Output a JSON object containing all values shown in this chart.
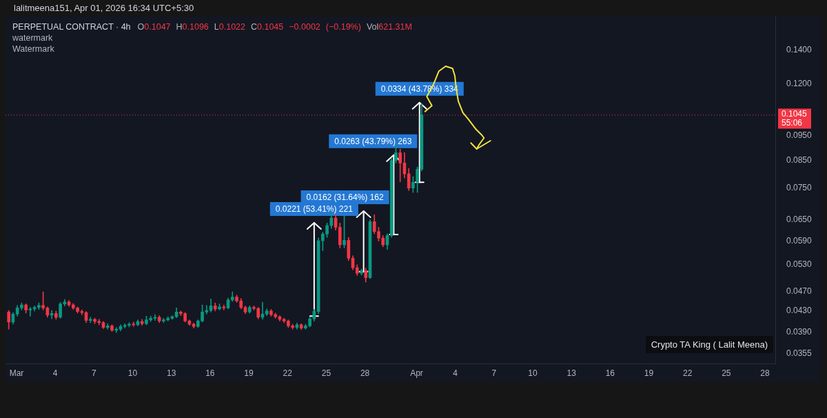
{
  "chart_data": {
    "type": "candlestick",
    "title": "PERPETUAL CONTRACT · 4h",
    "subtitle": "O0.1047 H0.1096 L0.1022 C0.1045 −0.0002 (−0.19%) Vol621.31M",
    "x": [
      "2026-02-28T09:30",
      "2026-02-28T17:30",
      "2026-03-01T01:30",
      "2026-03-01T09:30",
      "2026-03-01T17:30",
      "2026-03-02T01:30",
      "2026-03-02T09:30",
      "2026-03-02T17:30",
      "2026-03-03T01:30",
      "2026-03-03T09:30",
      "2026-03-03T17:30",
      "2026-03-04T01:30",
      "2026-03-04T09:30",
      "2026-03-04T17:30",
      "2026-03-05T01:30",
      "2026-03-05T09:30",
      "2026-03-05T17:30",
      "2026-03-06T01:30",
      "2026-03-06T09:30",
      "2026-03-06T17:30",
      "2026-03-07T01:30",
      "2026-03-07T09:30",
      "2026-03-07T17:30",
      "2026-03-08T01:30",
      "2026-03-08T09:30",
      "2026-03-08T17:30",
      "2026-03-09T01:30",
      "2026-03-09T09:30",
      "2026-03-09T17:30",
      "2026-03-10T01:30",
      "2026-03-10T09:30",
      "2026-03-10T17:30",
      "2026-03-11T01:30",
      "2026-03-11T09:30",
      "2026-03-11T17:30",
      "2026-03-12T01:30",
      "2026-03-12T09:30",
      "2026-03-12T17:30",
      "2026-03-13T01:30",
      "2026-03-13T09:30",
      "2026-03-13T17:30",
      "2026-03-14T01:30",
      "2026-03-14T09:30",
      "2026-03-14T17:30",
      "2026-03-15T01:30",
      "2026-03-15T09:30",
      "2026-03-15T17:30",
      "2026-03-16T01:30",
      "2026-03-16T09:30",
      "2026-03-16T17:30",
      "2026-03-17T01:30",
      "2026-03-17T09:30",
      "2026-03-17T17:30",
      "2026-03-18T01:30",
      "2026-03-18T09:30",
      "2026-03-18T17:30",
      "2026-03-19T01:30",
      "2026-03-19T09:30",
      "2026-03-19T17:30",
      "2026-03-20T01:30",
      "2026-03-20T09:30",
      "2026-03-20T17:30",
      "2026-03-21T01:30",
      "2026-03-21T09:30",
      "2026-03-21T17:30",
      "2026-03-22T01:30",
      "2026-03-22T09:30",
      "2026-03-22T17:30",
      "2026-03-23T01:30",
      "2026-03-23T09:30",
      "2026-03-23T17:30",
      "2026-03-24T01:30",
      "2026-03-24T09:30",
      "2026-03-24T17:30",
      "2026-03-25T01:30",
      "2026-03-25T09:30",
      "2026-03-25T17:30",
      "2026-03-26T01:30",
      "2026-03-26T09:30",
      "2026-03-26T17:30",
      "2026-03-27T01:30",
      "2026-03-27T09:30",
      "2026-03-27T17:30",
      "2026-03-28T01:30",
      "2026-03-28T09:30",
      "2026-03-28T17:30",
      "2026-03-29T01:30",
      "2026-03-29T09:30",
      "2026-03-29T17:30",
      "2026-03-30T01:30",
      "2026-03-30T09:30",
      "2026-03-30T17:30",
      "2026-03-31T01:30",
      "2026-03-31T09:30",
      "2026-03-31T17:30",
      "2026-04-01T01:30",
      "2026-04-01T09:30"
    ],
    "ohlc": [
      [
        0.0428,
        0.0431,
        0.0396,
        0.0409
      ],
      [
        0.0409,
        0.0427,
        0.0405,
        0.0424
      ],
      [
        0.0424,
        0.0441,
        0.042,
        0.0436
      ],
      [
        0.0436,
        0.0446,
        0.0432,
        0.0442
      ],
      [
        0.0442,
        0.0444,
        0.0426,
        0.0432
      ],
      [
        0.0432,
        0.0437,
        0.042,
        0.0434
      ],
      [
        0.0434,
        0.044,
        0.043,
        0.0437
      ],
      [
        0.0437,
        0.0446,
        0.0433,
        0.0441
      ],
      [
        0.0441,
        0.0469,
        0.0432,
        0.0436
      ],
      [
        0.0436,
        0.0438,
        0.0418,
        0.0422
      ],
      [
        0.0422,
        0.0431,
        0.0415,
        0.0425
      ],
      [
        0.0425,
        0.043,
        0.0414,
        0.0418
      ],
      [
        0.0418,
        0.0447,
        0.0416,
        0.0444
      ],
      [
        0.0444,
        0.0453,
        0.044,
        0.0448
      ],
      [
        0.0448,
        0.0451,
        0.0439,
        0.0442
      ],
      [
        0.0442,
        0.0445,
        0.0433,
        0.0436
      ],
      [
        0.0436,
        0.0438,
        0.0426,
        0.0429
      ],
      [
        0.0429,
        0.0432,
        0.0423,
        0.0427
      ],
      [
        0.0427,
        0.0429,
        0.0408,
        0.0412
      ],
      [
        0.0412,
        0.0418,
        0.0408,
        0.0414
      ],
      [
        0.0414,
        0.0416,
        0.0406,
        0.041
      ],
      [
        0.041,
        0.0414,
        0.0404,
        0.0408
      ],
      [
        0.0408,
        0.041,
        0.0397,
        0.0399
      ],
      [
        0.0399,
        0.0406,
        0.0396,
        0.0402
      ],
      [
        0.0402,
        0.0404,
        0.0392,
        0.0394
      ],
      [
        0.0394,
        0.0399,
        0.039,
        0.0396
      ],
      [
        0.0396,
        0.0404,
        0.0393,
        0.0401
      ],
      [
        0.0401,
        0.0406,
        0.0398,
        0.0403
      ],
      [
        0.0403,
        0.0408,
        0.04,
        0.0405
      ],
      [
        0.0405,
        0.0409,
        0.0401,
        0.0404
      ],
      [
        0.0404,
        0.0413,
        0.0402,
        0.041
      ],
      [
        0.041,
        0.0414,
        0.0403,
        0.0406
      ],
      [
        0.0406,
        0.042,
        0.0404,
        0.0413
      ],
      [
        0.0413,
        0.042,
        0.041,
        0.0416
      ],
      [
        0.0416,
        0.0423,
        0.0412,
        0.0418
      ],
      [
        0.0418,
        0.0421,
        0.0408,
        0.0411
      ],
      [
        0.0411,
        0.0416,
        0.0408,
        0.0413
      ],
      [
        0.0413,
        0.0419,
        0.0411,
        0.0416
      ],
      [
        0.0416,
        0.0421,
        0.0414,
        0.0419
      ],
      [
        0.0419,
        0.0436,
        0.0417,
        0.0428
      ],
      [
        0.0428,
        0.043,
        0.0421,
        0.0425
      ],
      [
        0.0425,
        0.0427,
        0.0409,
        0.0411
      ],
      [
        0.0411,
        0.0413,
        0.0403,
        0.0405
      ],
      [
        0.0405,
        0.0407,
        0.0398,
        0.0401
      ],
      [
        0.0401,
        0.0413,
        0.0399,
        0.0411
      ],
      [
        0.0411,
        0.0442,
        0.0409,
        0.0428
      ],
      [
        0.0428,
        0.0441,
        0.0424,
        0.0431
      ],
      [
        0.0431,
        0.0454,
        0.0428,
        0.044
      ],
      [
        0.044,
        0.0446,
        0.043,
        0.0434
      ],
      [
        0.0434,
        0.0444,
        0.0432,
        0.0438
      ],
      [
        0.0438,
        0.0442,
        0.0432,
        0.0436
      ],
      [
        0.0436,
        0.0456,
        0.0434,
        0.0452
      ],
      [
        0.0452,
        0.0469,
        0.0449,
        0.0458
      ],
      [
        0.0458,
        0.0462,
        0.0447,
        0.045
      ],
      [
        0.045,
        0.0455,
        0.0434,
        0.0437
      ],
      [
        0.0437,
        0.044,
        0.0425,
        0.0428
      ],
      [
        0.0428,
        0.044,
        0.0426,
        0.0437
      ],
      [
        0.0437,
        0.044,
        0.0432,
        0.0435
      ],
      [
        0.0435,
        0.0437,
        0.0415,
        0.0418
      ],
      [
        0.0418,
        0.0447,
        0.0414,
        0.0424
      ],
      [
        0.0424,
        0.0434,
        0.0421,
        0.043
      ],
      [
        0.043,
        0.0433,
        0.042,
        0.0423
      ],
      [
        0.0423,
        0.0426,
        0.0416,
        0.0419
      ],
      [
        0.0419,
        0.0421,
        0.0411,
        0.0414
      ],
      [
        0.0414,
        0.0416,
        0.0408,
        0.0411
      ],
      [
        0.0411,
        0.0413,
        0.0399,
        0.0402
      ],
      [
        0.0402,
        0.0405,
        0.0396,
        0.0399
      ],
      [
        0.0399,
        0.0407,
        0.0396,
        0.0404
      ],
      [
        0.0404,
        0.0406,
        0.0395,
        0.0398
      ],
      [
        0.0398,
        0.0405,
        0.0396,
        0.0402
      ],
      [
        0.0402,
        0.0418,
        0.04,
        0.0415
      ],
      [
        0.0415,
        0.0433,
        0.0411,
        0.0429
      ],
      [
        0.0429,
        0.0598,
        0.0425,
        0.0591
      ],
      [
        0.0591,
        0.0614,
        0.0565,
        0.0609
      ],
      [
        0.0609,
        0.064,
        0.06,
        0.0633
      ],
      [
        0.0633,
        0.0676,
        0.0625,
        0.0655
      ],
      [
        0.0655,
        0.0665,
        0.062,
        0.0628
      ],
      [
        0.0628,
        0.064,
        0.0572,
        0.058
      ],
      [
        0.058,
        0.066,
        0.0572,
        0.0592
      ],
      [
        0.0592,
        0.06,
        0.054,
        0.0546
      ],
      [
        0.0546,
        0.0552,
        0.0518,
        0.0523
      ],
      [
        0.0523,
        0.053,
        0.0505,
        0.051
      ],
      [
        0.051,
        0.052,
        0.0506,
        0.0516
      ],
      [
        0.0516,
        0.0522,
        0.049,
        0.05
      ],
      [
        0.05,
        0.065,
        0.0498,
        0.0644
      ],
      [
        0.0644,
        0.0665,
        0.061,
        0.0616
      ],
      [
        0.0616,
        0.0628,
        0.059,
        0.0598
      ],
      [
        0.0598,
        0.0605,
        0.0575,
        0.058
      ],
      [
        0.058,
        0.061,
        0.0568,
        0.0605
      ],
      [
        0.0605,
        0.086,
        0.06,
        0.085
      ],
      [
        0.085,
        0.0917,
        0.084,
        0.088
      ],
      [
        0.088,
        0.0895,
        0.0772,
        0.084
      ],
      [
        0.084,
        0.088,
        0.0785,
        0.08
      ],
      [
        0.08,
        0.082,
        0.0742,
        0.075
      ],
      [
        0.075,
        0.079,
        0.0735,
        0.077
      ],
      [
        0.077,
        0.0825,
        0.0735,
        0.0817
      ],
      [
        0.0817,
        0.11,
        0.081,
        0.1045
      ]
    ],
    "series": [
      {
        "type": "line",
        "x": [
          "2026-03-24T01:30",
          "2026-03-24T01:30"
        ],
        "values": [
          0.042,
          0.0641
        ],
        "color": "#ffffff"
      },
      {
        "type": "line",
        "x": [
          "2026-03-27T21:30",
          "2026-03-27T21:30"
        ],
        "values": [
          0.0514,
          0.0676
        ],
        "color": "#ffffff"
      },
      {
        "type": "line",
        "x": [
          "2026-03-30T05:30",
          "2026-03-30T05:30"
        ],
        "values": [
          0.0608,
          0.0871
        ],
        "color": "#ffffff"
      },
      {
        "type": "line",
        "x": [
          "2026-04-01T05:30",
          "2026-04-01T05:30"
        ],
        "values": [
          0.077,
          0.1104
        ],
        "color": "#ffffff"
      }
    ],
    "xlim": [
      "2026-02-28T03:30",
      "2026-04-28T19:10"
    ],
    "xticks": [
      {
        "value": "2026-03-01",
        "label": "Mar"
      },
      {
        "value": "2026-03-04",
        "label": "4"
      },
      {
        "value": "2026-03-07",
        "label": "7"
      },
      {
        "value": "2026-03-10",
        "label": "10"
      },
      {
        "value": "2026-03-13",
        "label": "13"
      },
      {
        "value": "2026-03-16",
        "label": "16"
      },
      {
        "value": "2026-03-19",
        "label": "19"
      },
      {
        "value": "2026-03-22",
        "label": "22"
      },
      {
        "value": "2026-03-25",
        "label": "25"
      },
      {
        "value": "2026-03-28",
        "label": "28"
      },
      {
        "value": "2026-04-01",
        "label": "Apr"
      },
      {
        "value": "2026-04-04",
        "label": "4"
      },
      {
        "value": "2026-04-07",
        "label": "7"
      },
      {
        "value": "2026-04-10",
        "label": "10"
      },
      {
        "value": "2026-04-13",
        "label": "13"
      },
      {
        "value": "2026-04-16",
        "label": "16"
      },
      {
        "value": "2026-04-19",
        "label": "19"
      },
      {
        "value": "2026-04-22",
        "label": "22"
      },
      {
        "value": "2026-04-25",
        "label": "25"
      },
      {
        "value": "2026-04-28",
        "label": "28"
      }
    ],
    "ylim": [
      0.0339,
      0.163
    ],
    "log": true,
    "yticks": [
      {
        "value": 0.14,
        "label": "0.1400"
      },
      {
        "value": 0.12,
        "label": "0.1200"
      },
      {
        "value": 0.095,
        "label": "0.0950"
      },
      {
        "value": 0.085,
        "label": "0.0850"
      },
      {
        "value": 0.075,
        "label": "0.0750"
      },
      {
        "value": 0.065,
        "label": "0.0650"
      },
      {
        "value": 0.059,
        "label": "0.0590"
      },
      {
        "value": 0.053,
        "label": "0.0530"
      },
      {
        "value": 0.047,
        "label": "0.0470"
      },
      {
        "value": 0.043,
        "label": "0.0430"
      },
      {
        "value": 0.039,
        "label": "0.0390"
      },
      {
        "value": 0.0355,
        "label": "0.0355"
      }
    ],
    "ref_lines": [
      {
        "axis": "y",
        "value": 0.1045,
        "label": "0.1045 55:06",
        "color": "#f23645",
        "line_style": "dotted"
      }
    ],
    "annotations": [
      "lalitmeena151, Apr 01, 2026 16:34 UTC+5:30",
      "watermark",
      "Watermark",
      {
        "text": "0.0221 (53.41%) 221",
        "x": "2026-03-24T01:30",
        "y": 0.0641
      },
      {
        "text": "0.0162 (31.64%) 162",
        "x": "2026-03-27T21:30",
        "y": 0.0676
      },
      {
        "text": "0.0263 (43.79%) 263",
        "x": "2026-03-30T05:30",
        "y": 0.0871
      },
      {
        "text": "0.0334 (43.78%) 334",
        "x": "2026-04-01T05:30",
        "y": 0.1104
      },
      "Crypto TA King ( Lalit Meena)"
    ]
  }
}
